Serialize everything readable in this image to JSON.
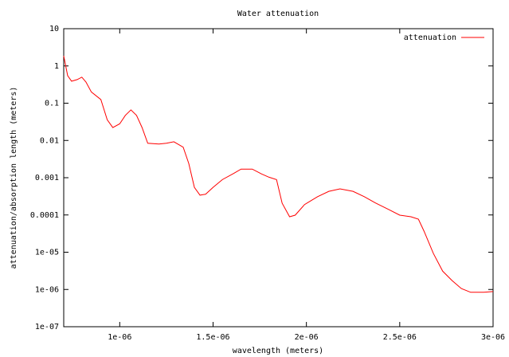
{
  "chart_data": {
    "type": "line",
    "title": "Water attenuation",
    "xlabel": "wavelength (meters)",
    "ylabel": "attenuation/absorption length (meters)",
    "xlim": [
      7e-07,
      3e-06
    ],
    "xticks": [
      {
        "value": 1e-06,
        "label": "1e-06"
      },
      {
        "value": 1.5e-06,
        "label": "1.5e-06"
      },
      {
        "value": 2e-06,
        "label": "2e-06"
      },
      {
        "value": 2.5e-06,
        "label": "2.5e-06"
      },
      {
        "value": 3e-06,
        "label": "3e-06"
      }
    ],
    "ylim": [
      1e-07,
      10
    ],
    "log_y": true,
    "yticks": [
      10,
      1,
      0.1,
      0.01,
      0.001,
      0.0001,
      {
        "value": 1e-05,
        "label": "1e-05"
      },
      {
        "value": 1e-06,
        "label": "1e-06"
      },
      {
        "value": 1e-07,
        "label": "1e-07"
      }
    ],
    "legend_position": "top-right",
    "series": [
      {
        "name": "attenuation",
        "color": "#ff0000",
        "x": [
          7e-07,
          7.21e-07,
          7.42e-07,
          7.72e-07,
          7.97e-07,
          8.19e-07,
          8.48e-07,
          8.99e-07,
          9.33e-07,
          9.63e-07,
          1e-06,
          1.03e-06,
          1.06e-06,
          1.09e-06,
          1.12e-06,
          1.15e-06,
          1.21e-06,
          1.25e-06,
          1.29e-06,
          1.34e-06,
          1.37e-06,
          1.4e-06,
          1.43e-06,
          1.46e-06,
          1.5e-06,
          1.55e-06,
          1.61e-06,
          1.65e-06,
          1.71e-06,
          1.76e-06,
          1.8e-06,
          1.84e-06,
          1.87e-06,
          1.91e-06,
          1.94e-06,
          1.99e-06,
          2.06e-06,
          2.12e-06,
          2.18e-06,
          2.25e-06,
          2.31e-06,
          2.37e-06,
          2.44e-06,
          2.5e-06,
          2.56e-06,
          2.6e-06,
          2.63e-06,
          2.68e-06,
          2.73e-06,
          2.78e-06,
          2.83e-06,
          2.88e-06,
          2.95e-06,
          3e-06
        ],
        "values": [
          1.87,
          0.55,
          0.39,
          0.43,
          0.5,
          0.37,
          0.2,
          0.125,
          0.036,
          0.0222,
          0.028,
          0.047,
          0.066,
          0.047,
          0.022,
          0.0084,
          0.008,
          0.0084,
          0.0092,
          0.0066,
          0.0024,
          0.00055,
          0.00034,
          0.00036,
          0.00055,
          0.00089,
          0.0013,
          0.0017,
          0.0017,
          0.00126,
          0.00103,
          0.00089,
          0.000207,
          8.95e-05,
          9.88e-05,
          0.00019,
          0.00031,
          0.00043,
          0.0005,
          0.00043,
          0.00031,
          0.00021,
          0.000141,
          9.88e-05,
          8.95e-05,
          7.7e-05,
          3.69e-05,
          9.3e-06,
          3.1e-06,
          1.74e-06,
          1.06e-06,
          8.4e-07,
          8.4e-07,
          8.8e-07
        ]
      }
    ]
  }
}
